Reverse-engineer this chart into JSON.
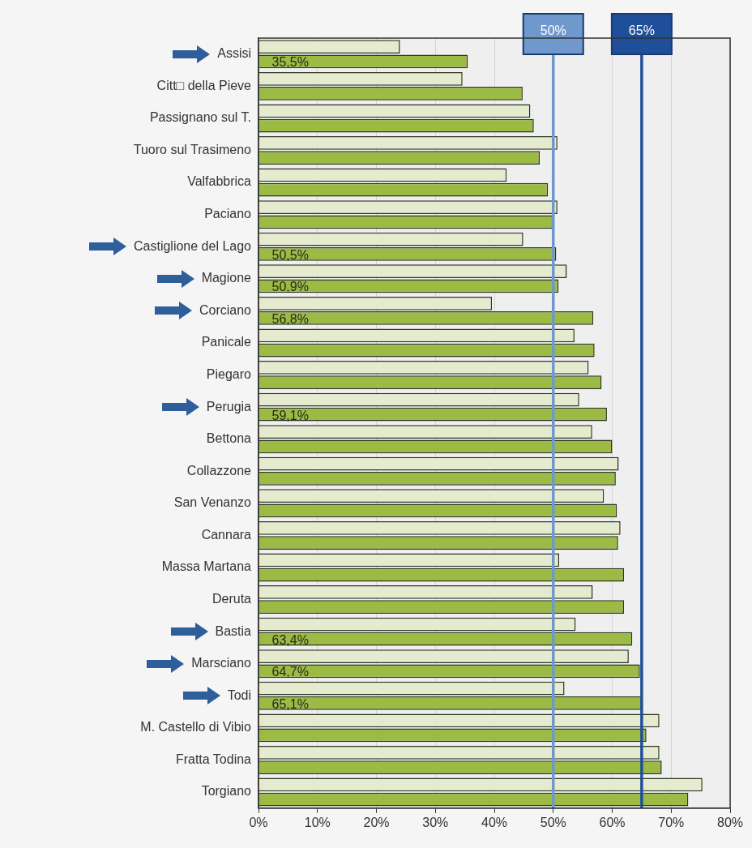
{
  "chart_data": {
    "type": "bar",
    "orientation": "horizontal",
    "categories": [
      "Assisi",
      "Citt□ della Pieve",
      "Passignano sul T.",
      "Tuoro sul Trasimeno",
      "Valfabbrica",
      "Paciano",
      "Castiglione del Lago",
      "Magione",
      "Corciano",
      "Panicale",
      "Piegaro",
      "Perugia",
      "Bettona",
      "Collazzone",
      "San Venanzo",
      "Cannara",
      "Massa Martana",
      "Deruta",
      "Bastia",
      "Marsciano",
      "Todi",
      "M. Castello di Vibio",
      "Fratta Todina",
      "Torgiano"
    ],
    "series": [
      {
        "color": "#e4ebcf",
        "values": [
          24.0,
          34.6,
          46.1,
          50.7,
          42.1,
          50.7,
          44.9,
          52.3,
          39.6,
          53.6,
          56.0,
          54.4,
          56.6,
          61.1,
          58.6,
          61.4,
          51.0,
          56.7,
          53.8,
          62.8,
          51.9,
          68.0,
          68.0,
          75.3
        ]
      },
      {
        "color": "#9bbb45",
        "values": [
          35.5,
          44.8,
          46.7,
          47.7,
          49.1,
          49.9,
          50.5,
          50.9,
          56.8,
          57.0,
          58.2,
          59.1,
          60.0,
          60.6,
          60.8,
          61.0,
          62.0,
          62.0,
          63.4,
          64.7,
          65.1,
          65.8,
          68.4,
          72.9
        ],
        "value_labels": [
          "35,5%",
          null,
          null,
          null,
          null,
          null,
          "50,5%",
          "50,9%",
          "56,8%",
          null,
          null,
          "59,1%",
          null,
          null,
          null,
          null,
          null,
          null,
          "63,4%",
          "64,7%",
          "65,1%",
          null,
          null,
          null
        ]
      }
    ],
    "xlim": [
      0,
      80
    ],
    "xticks": [
      {
        "value": 0,
        "label": "0%"
      },
      {
        "value": 10,
        "label": "10%"
      },
      {
        "value": 20,
        "label": "20%"
      },
      {
        "value": 30,
        "label": "30%"
      },
      {
        "value": 40,
        "label": "40%"
      },
      {
        "value": 50,
        "label": "50%"
      },
      {
        "value": 60,
        "label": "60%"
      },
      {
        "value": 70,
        "label": "70%"
      },
      {
        "value": 80,
        "label": "80%"
      }
    ],
    "grid": "x",
    "ref_lines": [
      {
        "axis": "x",
        "value": 50,
        "label": "50%",
        "color": "#6f98cc"
      },
      {
        "axis": "x",
        "value": 65,
        "label": "65%",
        "color": "#1f4f98"
      }
    ]
  }
}
